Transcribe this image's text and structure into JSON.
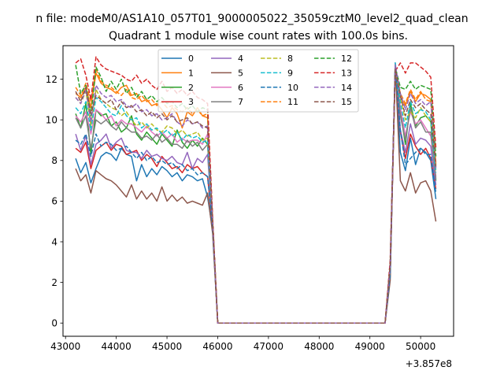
{
  "suptitle": "n file: modeM0/AS1A10_057T01_9000005022_35059cztM0_level2_quad_clean",
  "chart_data": {
    "type": "line",
    "title": "Quadrant 1 module wise count rates with 100.0s bins.",
    "xlabel": "",
    "ylabel": "",
    "x_offset_label": "+3.857e8",
    "xlim": [
      42950,
      50650
    ],
    "ylim": [
      -0.65,
      13.65
    ],
    "x_ticks": [
      43000,
      44000,
      45000,
      46000,
      47000,
      48000,
      49000,
      50000
    ],
    "y_ticks": [
      0,
      2,
      4,
      6,
      8,
      10,
      12
    ],
    "grid": false,
    "legend": {
      "placement": "top-center",
      "columns": 4
    },
    "segments": {
      "seg1_x": [
        43200,
        43300,
        43400,
        43500,
        43600,
        43700,
        43800,
        43900,
        44000,
        44100,
        44200,
        44300,
        44400,
        44500,
        44600,
        44700,
        44800,
        44900,
        45000,
        45100,
        45200,
        45300,
        45400,
        45500,
        45600,
        45700,
        45800,
        45900,
        46000
      ],
      "seg2_x": [
        49300,
        49400,
        49500,
        49600,
        49700,
        49800,
        49900,
        50000,
        50100,
        50200,
        50300
      ],
      "gap_x": [
        46000,
        49300
      ],
      "gap_y": 0
    },
    "series": [
      {
        "name": "0",
        "color": "#1f77b4",
        "style": "solid",
        "seg1": [
          8.1,
          7.4,
          7.9,
          6.9,
          7.6,
          8.2,
          8.4,
          8.3,
          8.0,
          8.6,
          8.3,
          8.2,
          7.0,
          7.8,
          7.2,
          7.6,
          7.3,
          7.7,
          7.5,
          7.2,
          7.4,
          7.0,
          7.3,
          7.2,
          7.0,
          7.1,
          6.2,
          4.6,
          0
        ],
        "seg2": [
          0,
          2.3,
          12.8,
          8.4,
          7.5,
          9.1,
          7.8,
          8.6,
          8.4,
          8.0,
          6.1
        ]
      },
      {
        "name": "1",
        "color": "#ff7f0e",
        "style": "solid",
        "seg1": [
          11.3,
          11.1,
          11.6,
          10.6,
          12.3,
          11.8,
          11.6,
          11.5,
          11.3,
          11.6,
          11.7,
          11.2,
          11.3,
          10.9,
          11.0,
          10.7,
          10.8,
          10.5,
          10.1,
          10.6,
          10.3,
          9.6,
          10.4,
          10.2,
          10.6,
          10.2,
          10.1,
          5.0,
          0
        ],
        "seg2": [
          0,
          2.8,
          12.3,
          11.1,
          10.7,
          11.4,
          10.9,
          11.3,
          11.2,
          11.0,
          7.8
        ]
      },
      {
        "name": "2",
        "color": "#2ca02c",
        "style": "solid",
        "seg1": [
          10.3,
          9.6,
          10.8,
          8.3,
          10.5,
          10.2,
          10.3,
          9.7,
          9.9,
          9.4,
          9.6,
          10.2,
          9.3,
          9.0,
          9.4,
          9.1,
          8.8,
          9.3,
          9.0,
          8.7,
          9.5,
          8.9,
          8.6,
          9.0,
          8.7,
          9.1,
          8.8,
          4.8,
          0
        ],
        "seg2": [
          0,
          2.6,
          12.6,
          10.4,
          8.8,
          10.8,
          9.7,
          10.1,
          10.2,
          9.9,
          7.0
        ]
      },
      {
        "name": "3",
        "color": "#d62728",
        "style": "solid",
        "seg1": [
          8.6,
          8.4,
          8.9,
          7.6,
          8.5,
          8.7,
          8.9,
          8.5,
          8.8,
          8.7,
          8.3,
          8.4,
          8.5,
          8.0,
          8.3,
          8.1,
          7.7,
          8.2,
          7.9,
          7.6,
          7.7,
          7.4,
          7.8,
          7.6,
          7.7,
          7.4,
          7.2,
          4.7,
          0
        ],
        "seg2": [
          0,
          2.4,
          12.6,
          9.4,
          8.1,
          9.3,
          8.7,
          8.3,
          8.6,
          8.1,
          6.6
        ]
      },
      {
        "name": "4",
        "color": "#9467bd",
        "style": "solid",
        "seg1": [
          9.3,
          8.5,
          9.2,
          7.8,
          8.8,
          9.0,
          9.3,
          8.6,
          8.9,
          9.1,
          8.5,
          8.4,
          8.4,
          8.1,
          8.5,
          8.2,
          8.3,
          8.1,
          8.0,
          8.2,
          7.9,
          7.8,
          8.4,
          7.6,
          8.1,
          7.9,
          8.3,
          4.7,
          0
        ],
        "seg2": [
          0,
          2.5,
          12.7,
          9.5,
          8.4,
          9.8,
          8.8,
          9.1,
          9.0,
          8.7,
          6.8
        ]
      },
      {
        "name": "5",
        "color": "#8c564b",
        "style": "solid",
        "seg1": [
          7.6,
          7.0,
          7.3,
          6.4,
          7.5,
          7.3,
          7.1,
          7.0,
          6.8,
          6.5,
          6.2,
          6.8,
          6.1,
          6.5,
          6.1,
          6.4,
          6.0,
          6.7,
          6.0,
          6.3,
          6.0,
          6.2,
          5.9,
          6.0,
          5.9,
          5.8,
          6.4,
          4.4,
          0
        ],
        "seg2": [
          0,
          2.1,
          12.7,
          7.0,
          6.5,
          7.4,
          6.4,
          6.9,
          7.0,
          6.5,
          5.0
        ]
      },
      {
        "name": "6",
        "color": "#e377c2",
        "style": "solid",
        "seg1": [
          10.2,
          9.9,
          10.4,
          9.3,
          10.5,
          10.3,
          10.0,
          10.2,
          9.7,
          10.0,
          9.8,
          9.8,
          9.6,
          9.4,
          9.7,
          9.4,
          9.2,
          9.4,
          9.1,
          9.3,
          8.9,
          9.1,
          8.9,
          9.0,
          9.0,
          8.8,
          9.3,
          4.8,
          0
        ],
        "seg2": [
          0,
          2.7,
          12.8,
          10.6,
          9.2,
          10.4,
          9.8,
          10.0,
          9.6,
          9.2,
          7.2
        ]
      },
      {
        "name": "7",
        "color": "#7f7f7f",
        "style": "solid",
        "seg1": [
          10.1,
          9.6,
          10.2,
          8.6,
          10.0,
          9.8,
          10.0,
          9.7,
          9.5,
          9.9,
          9.6,
          9.4,
          9.4,
          9.1,
          9.2,
          9.0,
          9.3,
          8.9,
          9.1,
          8.8,
          8.8,
          8.6,
          9.0,
          8.7,
          8.9,
          8.5,
          8.8,
          4.8,
          0
        ],
        "seg2": [
          0,
          2.6,
          12.7,
          10.2,
          9.0,
          10.6,
          9.6,
          9.9,
          9.4,
          9.4,
          7.1
        ]
      },
      {
        "name": "8",
        "color": "#bcbd22",
        "style": "dashed",
        "seg1": [
          11.1,
          10.8,
          11.4,
          9.7,
          11.5,
          11.0,
          10.8,
          10.6,
          10.5,
          10.2,
          10.4,
          10.0,
          9.7,
          9.9,
          9.6,
          9.8,
          9.5,
          9.4,
          9.7,
          9.6,
          9.3,
          9.5,
          9.2,
          9.3,
          9.4,
          9.0,
          9.1,
          4.9,
          0
        ],
        "seg2": [
          0,
          2.8,
          12.7,
          11.1,
          10.0,
          10.4,
          10.1,
          10.6,
          10.2,
          9.9,
          7.5
        ]
      },
      {
        "name": "9",
        "color": "#17becf",
        "style": "dashed",
        "seg1": [
          10.6,
          10.3,
          10.9,
          9.5,
          11.1,
          10.9,
          10.6,
          10.3,
          10.2,
          10.7,
          10.2,
          10.0,
          10.1,
          9.6,
          9.8,
          9.5,
          9.6,
          9.3,
          9.5,
          9.2,
          9.4,
          9.0,
          9.3,
          9.1,
          9.2,
          8.9,
          9.0,
          4.9,
          0
        ],
        "seg2": [
          0,
          2.7,
          12.8,
          10.8,
          9.6,
          10.9,
          10.3,
          10.5,
          10.4,
          10.0,
          7.4
        ]
      },
      {
        "name": "10",
        "color": "#1f77b4",
        "style": "dashed",
        "seg1": [
          9.0,
          8.8,
          9.3,
          8.2,
          9.3,
          8.7,
          8.9,
          8.8,
          8.5,
          8.6,
          8.7,
          8.4,
          8.1,
          8.4,
          8.0,
          8.2,
          7.9,
          8.0,
          7.8,
          7.9,
          7.6,
          7.8,
          7.5,
          7.6,
          7.3,
          7.4,
          7.2,
          4.7,
          0
        ],
        "seg2": [
          0,
          2.4,
          12.6,
          9.5,
          7.8,
          8.1,
          8.4,
          8.6,
          8.3,
          8.3,
          6.4
        ]
      },
      {
        "name": "11",
        "color": "#ff7f0e",
        "style": "dashed",
        "seg1": [
          11.6,
          11.2,
          11.8,
          10.9,
          12.5,
          11.9,
          11.7,
          11.6,
          11.4,
          11.2,
          11.5,
          11.1,
          11.0,
          11.2,
          10.9,
          11.0,
          10.7,
          10.9,
          10.6,
          10.7,
          10.5,
          10.4,
          10.6,
          10.3,
          10.5,
          10.2,
          10.3,
          5.1,
          0
        ],
        "seg2": [
          0,
          2.9,
          12.4,
          11.3,
          10.8,
          11.5,
          11.0,
          11.4,
          11.0,
          10.9,
          7.9
        ]
      },
      {
        "name": "12",
        "color": "#2ca02c",
        "style": "dashed",
        "seg1": [
          12.7,
          11.3,
          11.7,
          10.2,
          12.6,
          12.1,
          11.4,
          11.9,
          11.5,
          12.0,
          11.3,
          11.6,
          11.1,
          11.4,
          11.0,
          11.2,
          10.9,
          11.1,
          10.8,
          10.9,
          10.6,
          10.8,
          10.5,
          10.7,
          10.4,
          10.6,
          10.5,
          5.1,
          0
        ],
        "seg2": [
          0,
          3.0,
          12.6,
          11.6,
          11.5,
          11.9,
          11.5,
          11.7,
          11.6,
          11.5,
          8.2
        ]
      },
      {
        "name": "13",
        "color": "#d62728",
        "style": "dashed",
        "seg1": [
          12.8,
          13.0,
          12.2,
          11.0,
          13.1,
          12.7,
          12.5,
          12.4,
          12.3,
          12.2,
          12.0,
          11.9,
          12.2,
          11.8,
          12.0,
          11.7,
          11.5,
          11.9,
          11.4,
          11.6,
          11.3,
          11.5,
          11.2,
          11.4,
          11.1,
          11.0,
          10.8,
          5.2,
          0
        ],
        "seg2": [
          0,
          3.1,
          12.4,
          12.8,
          12.3,
          12.8,
          12.8,
          12.6,
          12.4,
          12.1,
          8.6
        ]
      },
      {
        "name": "14",
        "color": "#9467bd",
        "style": "dashed",
        "seg1": [
          11.1,
          10.8,
          11.5,
          9.9,
          11.7,
          11.3,
          11.1,
          11.2,
          10.9,
          11.0,
          10.7,
          10.6,
          10.8,
          10.4,
          10.5,
          10.2,
          10.3,
          10.0,
          10.1,
          10.3,
          9.9,
          9.7,
          10.0,
          9.8,
          9.9,
          9.6,
          9.7,
          5.0,
          0
        ],
        "seg2": [
          0,
          2.8,
          12.7,
          11.3,
          10.5,
          11.3,
          10.8,
          11.0,
          10.7,
          10.9,
          7.6
        ]
      },
      {
        "name": "15",
        "color": "#8c564b",
        "style": "dashed",
        "seg1": [
          11.4,
          10.9,
          11.6,
          10.3,
          11.2,
          11.0,
          10.8,
          11.0,
          10.5,
          10.9,
          10.6,
          10.7,
          10.4,
          10.5,
          10.2,
          10.4,
          10.1,
          10.3,
          10.0,
          10.2,
          9.9,
          10.0,
          10.1,
          9.8,
          9.9,
          9.7,
          9.6,
          5.0,
          0
        ],
        "seg2": [
          0,
          2.9,
          12.5,
          11.2,
          10.2,
          11.0,
          10.6,
          10.8,
          10.5,
          10.3,
          7.7
        ]
      }
    ]
  }
}
